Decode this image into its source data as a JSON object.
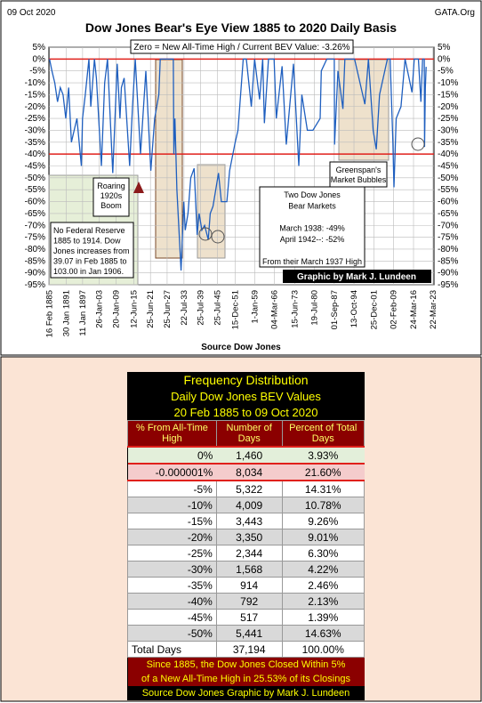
{
  "chart_data": {
    "type": "line",
    "title": "Dow Jones Bear's Eye View 1885 to 2020 Daily Basis",
    "date": "09 Oct 2020",
    "source": "GATA.Org",
    "subtitle": "Zero = New All-Time High / Current BEV Value: -3.26%",
    "xlabel": "Source Dow Jones",
    "color": "#1f5fbf",
    "grid": true,
    "reference_lines": [
      0,
      -40
    ],
    "reference_color": "#e0201b",
    "ylim": [
      -95,
      5
    ],
    "yticks": [
      {
        "value": 5,
        "label": "5%"
      },
      {
        "value": 0,
        "label": "0%"
      },
      {
        "value": -5,
        "label": "-5%"
      },
      {
        "value": -10,
        "label": "-10%"
      },
      {
        "value": -15,
        "label": "-15%"
      },
      {
        "value": -20,
        "label": "-20%"
      },
      {
        "value": -25,
        "label": "-25%"
      },
      {
        "value": -30,
        "label": "-30%"
      },
      {
        "value": -35,
        "label": "-35%"
      },
      {
        "value": -40,
        "label": "-40%"
      },
      {
        "value": -45,
        "label": "-45%"
      },
      {
        "value": -50,
        "label": "-50%"
      },
      {
        "value": -55,
        "label": "-55%"
      },
      {
        "value": -60,
        "label": "-60%"
      },
      {
        "value": -65,
        "label": "-65%"
      },
      {
        "value": -70,
        "label": "-70%"
      },
      {
        "value": -75,
        "label": "-75%"
      },
      {
        "value": -80,
        "label": "-80%"
      },
      {
        "value": -85,
        "label": "-85%"
      },
      {
        "value": -90,
        "label": "-90%"
      },
      {
        "value": -95,
        "label": "-95%"
      }
    ],
    "xlim": [
      1884.9,
      2023.6
    ],
    "xticks": [
      {
        "value": 1885.13,
        "label": "16 Feb 1885"
      },
      {
        "value": 1891.08,
        "label": "30 Jan 1891"
      },
      {
        "value": 1897.03,
        "label": "11 Jan 1897"
      },
      {
        "value": 1903.07,
        "label": "26-Jan-03"
      },
      {
        "value": 1909.05,
        "label": "20-Jan-09"
      },
      {
        "value": 1915.45,
        "label": "12-Jun-15"
      },
      {
        "value": 1921.48,
        "label": "25-Jun-21"
      },
      {
        "value": 1927.48,
        "label": "25-Jun-27"
      },
      {
        "value": 1933.55,
        "label": "22-Jul-33"
      },
      {
        "value": 1939.56,
        "label": "25-Jul-39"
      },
      {
        "value": 1945.56,
        "label": "25-Jul-45"
      },
      {
        "value": 1951.95,
        "label": "15-Dec-51"
      },
      {
        "value": 1959.0,
        "label": "1-Jan-59"
      },
      {
        "value": 1966.17,
        "label": "04-Mar-66"
      },
      {
        "value": 1973.45,
        "label": "15-Jun-73"
      },
      {
        "value": 1980.55,
        "label": "19-Jul-80"
      },
      {
        "value": 1987.67,
        "label": "01-Sep-87"
      },
      {
        "value": 1994.78,
        "label": "13-Oct-94"
      },
      {
        "value": 2001.98,
        "label": "25-Dec-01"
      },
      {
        "value": 2009.09,
        "label": "02-Feb-09"
      },
      {
        "value": 2016.23,
        "label": "24-Mar-16"
      },
      {
        "value": 2023.22,
        "label": "22-Mar-23"
      }
    ],
    "x": [
      1885.13,
      1886,
      1887,
      1888,
      1889,
      1890,
      1891,
      1892,
      1893,
      1894,
      1895,
      1896.6,
      1897,
      1898,
      1899.3,
      1900,
      1901.3,
      1902,
      1903.8,
      1905,
      1906,
      1907.9,
      1909.5,
      1910.5,
      1911,
      1912,
      1914,
      1915,
      1916,
      1917.9,
      1919.8,
      1921.6,
      1923,
      1924.5,
      1925,
      1927,
      1929.7,
      1929.9,
      1930.3,
      1931,
      1932.5,
      1933.5,
      1934,
      1935,
      1936,
      1937.2,
      1938.3,
      1939,
      1940,
      1941,
      1942.3,
      1943,
      1944,
      1946,
      1947,
      1949,
      1950,
      1952,
      1953,
      1954.9,
      1956,
      1957.8,
      1959,
      1960.8,
      1961.9,
      1962.5,
      1964,
      1966,
      1966.8,
      1968.9,
      1970.4,
      1973,
      1974.9,
      1976,
      1978,
      1980,
      1982.6,
      1983,
      1985,
      1987.7,
      1987.8,
      1989,
      1990.8,
      1991.5,
      1995,
      1998.7,
      2000,
      2001.7,
      2002.8,
      2004,
      2006.8,
      2007.8,
      2008.8,
      2009.2,
      2010,
      2011.7,
      2013.2,
      2015.7,
      2016.5,
      2018,
      2018.9,
      2019.5,
      2020.1,
      2020.22,
      2020.5,
      2020.77
    ],
    "values": [
      0,
      -5,
      -10,
      -18,
      -12,
      -15,
      -25,
      -12,
      -35,
      -30,
      -25,
      -45,
      -25,
      -15,
      0,
      -20,
      0,
      -8,
      -45,
      -10,
      0,
      -48,
      -2,
      -25,
      -12,
      -8,
      -45,
      -20,
      0,
      -40,
      -5,
      -47,
      -25,
      -15,
      0,
      0,
      0,
      -40,
      -25,
      -55,
      -89,
      -60,
      -72,
      -65,
      -50,
      -46,
      -74,
      -65,
      -72,
      -70,
      -76,
      -65,
      -62,
      -48,
      -60,
      -60,
      -47,
      -35,
      -30,
      0,
      0,
      -20,
      0,
      -17,
      0,
      -27,
      0,
      0,
      -25,
      -3,
      -36,
      -2,
      -45,
      -15,
      -30,
      -30,
      -25,
      -5,
      0,
      0,
      -36,
      -5,
      -21,
      0,
      0,
      -19,
      0,
      -30,
      -38,
      -15,
      0,
      0,
      -35,
      -54,
      -25,
      -20,
      0,
      -14,
      0,
      0,
      -18,
      0,
      0,
      -37,
      -12,
      -3.26
    ],
    "annotations": [
      [
        "Roaring",
        "1920s",
        "Boom"
      ],
      [
        "No Federal Reserve",
        "1885 to 1914.  Dow",
        "Jones increases from",
        "39.07 in Feb 1885 to",
        "103.00 in Jan 1906."
      ],
      [
        "Two Dow Jones",
        "Bear Markets",
        "",
        "March 1938: -49%",
        "April 1942--: -52%",
        "",
        "From their March 1937 High"
      ],
      [
        "Greenspan's",
        "Market Bubbles"
      ]
    ],
    "credit": "Graphic by Mark J. Lundeen"
  },
  "table": {
    "title": [
      "Frequency Distribution",
      "Daily Dow Jones BEV Values",
      "20 Feb 1885 to 09 Oct 2020"
    ],
    "columns": [
      "% From All-Time High",
      "Number of Days",
      "Percent of Total Days"
    ],
    "rows": [
      [
        "0%",
        "1,460",
        "3.93%"
      ],
      [
        "-0.000001%",
        "8,034",
        "21.60%"
      ],
      [
        "-5%",
        "5,322",
        "14.31%"
      ],
      [
        "-10%",
        "4,009",
        "10.78%"
      ],
      [
        "-15%",
        "3,443",
        "9.26%"
      ],
      [
        "-20%",
        "3,350",
        "9.01%"
      ],
      [
        "-25%",
        "2,344",
        "6.30%"
      ],
      [
        "-30%",
        "1,568",
        "4.22%"
      ],
      [
        "-35%",
        "914",
        "2.46%"
      ],
      [
        "-40%",
        "792",
        "2.13%"
      ],
      [
        "-45%",
        "517",
        "1.39%"
      ],
      [
        "-50%",
        "5,441",
        "14.63%"
      ]
    ],
    "total": [
      "Total Days",
      "37,194",
      "100.00%"
    ],
    "notes": [
      "Since 1885, the Dow Jones Closed Within 5%",
      "of a New All-Time High in 25.53% of its Closings",
      "Source Dow Jones   Graphic by Mark J. Lundeen"
    ]
  }
}
